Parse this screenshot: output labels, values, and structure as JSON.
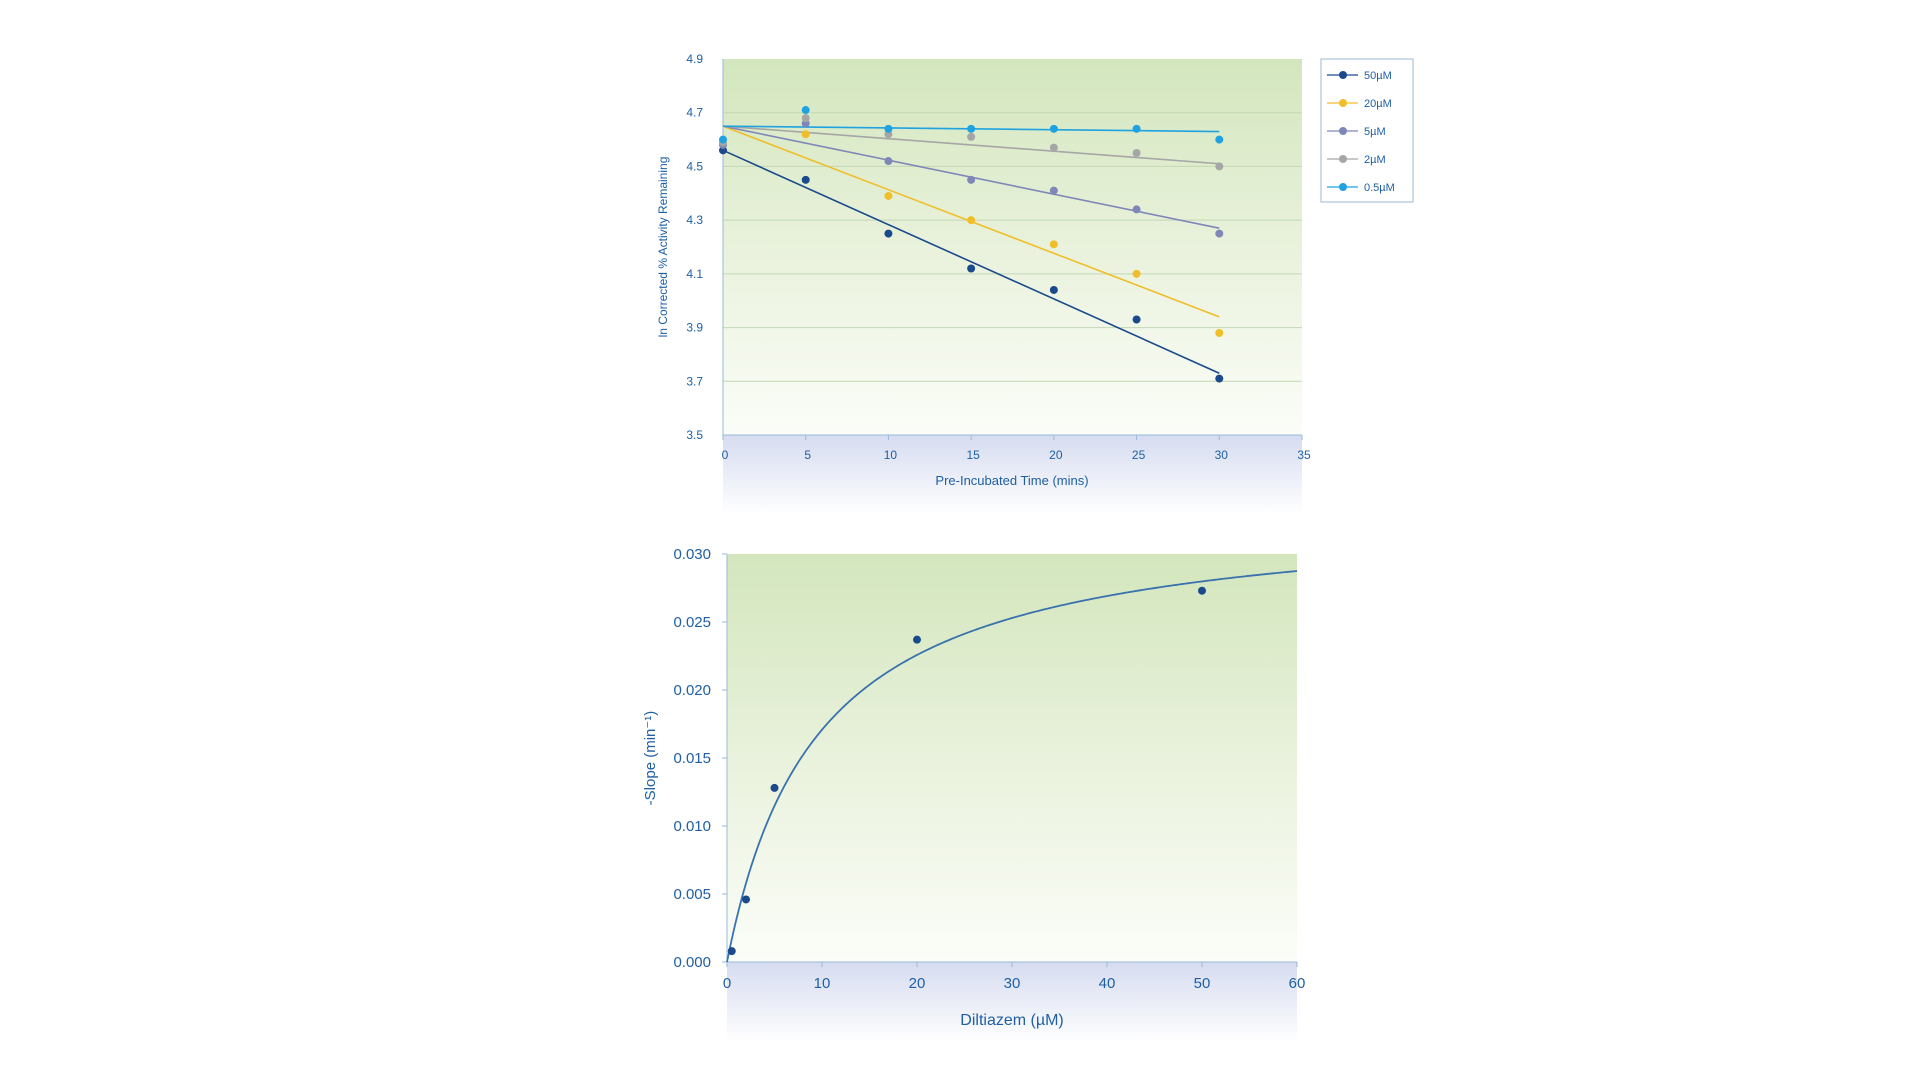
{
  "chart_data": [
    {
      "type": "scatter",
      "title": "",
      "xlabel": "Pre-Incubated Time (mins)",
      "ylabel": "ln Corrected % Activity Remaining",
      "xlim": [
        0,
        35
      ],
      "ylim": [
        3.5,
        4.9
      ],
      "x_ticks": [
        "0",
        "5",
        "10",
        "15",
        "20",
        "25",
        "30",
        "35"
      ],
      "y_ticks": [
        "3.5",
        "3.7",
        "3.9",
        "4.1",
        "4.3",
        "4.5",
        "4.7",
        "4.9"
      ],
      "grid": "horizontal",
      "legend_position": "right",
      "series": [
        {
          "name": "50µM",
          "color": "#1a4a8c",
          "x": [
            0,
            5,
            10,
            15,
            20,
            25,
            30
          ],
          "y": [
            4.56,
            4.45,
            4.25,
            4.12,
            4.04,
            3.93,
            3.71
          ],
          "fit": [
            [
              0,
              4.56
            ],
            [
              30,
              3.73
            ]
          ]
        },
        {
          "name": "20µM",
          "color": "#f0be2a",
          "x": [
            0,
            5,
            10,
            15,
            20,
            25,
            30
          ],
          "y": [
            4.59,
            4.62,
            4.39,
            4.3,
            4.21,
            4.1,
            3.88
          ],
          "fit": [
            [
              0,
              4.65
            ],
            [
              30,
              3.94
            ]
          ]
        },
        {
          "name": "5µM",
          "color": "#7f87b8",
          "x": [
            0,
            5,
            10,
            15,
            20,
            25,
            30
          ],
          "y": [
            4.58,
            4.66,
            4.52,
            4.45,
            4.41,
            4.34,
            4.25
          ],
          "fit": [
            [
              0,
              4.65
            ],
            [
              30,
              4.27
            ]
          ]
        },
        {
          "name": "2µM",
          "color": "#a6a6a6",
          "x": [
            0,
            5,
            10,
            15,
            20,
            25,
            30
          ],
          "y": [
            4.59,
            4.68,
            4.62,
            4.61,
            4.57,
            4.55,
            4.5
          ],
          "fit": [
            [
              0,
              4.65
            ],
            [
              30,
              4.51
            ]
          ]
        },
        {
          "name": "0.5µM",
          "color": "#1ea3e0",
          "x": [
            0,
            5,
            10,
            15,
            20,
            25,
            30
          ],
          "y": [
            4.6,
            4.71,
            4.64,
            4.64,
            4.64,
            4.64,
            4.6
          ],
          "fit": [
            [
              0,
              4.65
            ],
            [
              30,
              4.63
            ]
          ]
        }
      ]
    },
    {
      "type": "scatter",
      "title": "",
      "xlabel": "Diltiazem (µM)",
      "ylabel": "-Slope (min⁻¹)",
      "xlim": [
        0,
        60
      ],
      "ylim": [
        0,
        0.03
      ],
      "x_ticks": [
        "0",
        "10",
        "20",
        "30",
        "40",
        "50",
        "60"
      ],
      "y_ticks": [
        "0.000",
        "0.005",
        "0.010",
        "0.015",
        "0.020",
        "0.025",
        "0.030"
      ],
      "grid": "none",
      "series": [
        {
          "name": "",
          "color": "#1a4a8c",
          "x": [
            0.5,
            2,
            5,
            20,
            50
          ],
          "y": [
            0.0008,
            0.0046,
            0.0128,
            0.0237,
            0.0273
          ]
        }
      ],
      "fit": {
        "model": "hyperbolic",
        "kmax": 0.0333,
        "ki": 9.5
      }
    }
  ]
}
